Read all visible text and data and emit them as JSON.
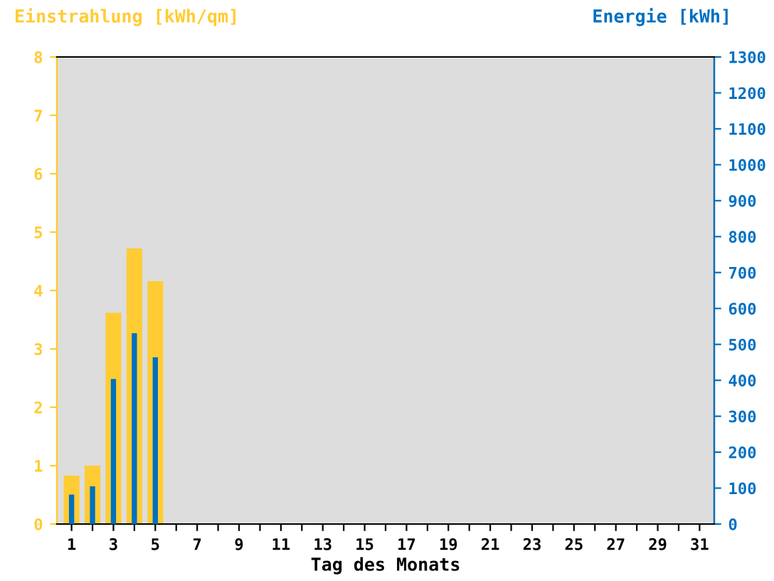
{
  "chart_data": {
    "type": "bar",
    "xlabel": "Tag des Monats",
    "ylabel": "Einstrahlung [kWh/qm]",
    "y2label": "Energie [kWh]",
    "categories": [
      "1",
      null,
      "3",
      null,
      "5",
      null,
      "7",
      null,
      "9",
      null,
      "11",
      null,
      "13",
      null,
      "15",
      null,
      "17",
      null,
      "19",
      null,
      "21",
      null,
      "23",
      null,
      "25",
      null,
      "27",
      null,
      "29",
      null,
      "31"
    ],
    "series": [
      {
        "color": "#ffcc33",
        "values": [
          0.83,
          1.0,
          3.62,
          4.72,
          4.16,
          null,
          null,
          null,
          null,
          null,
          null,
          null,
          null,
          null,
          null,
          null,
          null,
          null,
          null,
          null,
          null,
          null,
          null,
          null,
          null,
          null,
          null,
          null,
          null,
          null,
          null
        ]
      },
      {
        "axis": "y2",
        "color": "#0070c0",
        "values": [
          82,
          105,
          404,
          531,
          464,
          null,
          null,
          null,
          null,
          null,
          null,
          null,
          null,
          null,
          null,
          null,
          null,
          null,
          null,
          null,
          null,
          null,
          null,
          null,
          null,
          null,
          null,
          null,
          null,
          null,
          null
        ]
      }
    ],
    "ylim": [
      0,
      8
    ],
    "yticks": [
      0,
      1,
      2,
      3,
      4,
      5,
      6,
      7,
      8
    ],
    "y2lim": [
      0,
      1300
    ],
    "y2ticks": [
      0,
      100,
      200,
      300,
      400,
      500,
      600,
      700,
      800,
      900,
      1000,
      1100,
      1200,
      1300
    ],
    "grid": false,
    "legend": false
  }
}
